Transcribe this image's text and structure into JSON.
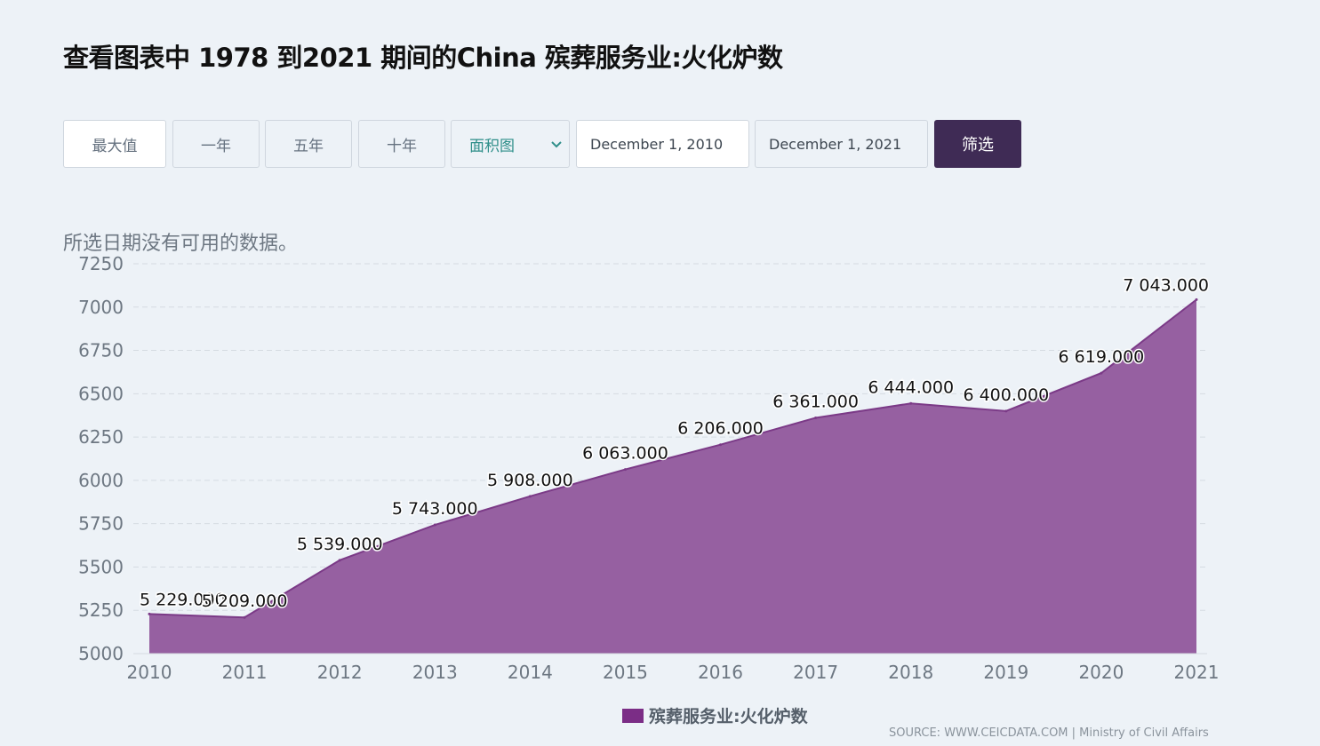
{
  "title": "查看图表中 1978 到2021 期间的China 殡葬服务业:火化炉数",
  "toolbar": {
    "buttons": [
      "最大值",
      "一年",
      "五年",
      "十年"
    ],
    "chart_type_select": "面积图",
    "start_date": "December 1, 2010",
    "end_date": "December 1, 2021",
    "filter_label": "筛选"
  },
  "no_data_message": "所选日期没有可用的数据。",
  "legend_label": "殡葬服务业:火化炉数",
  "source_text": "SOURCE: WWW.CEICDATA.COM | Ministry of Civil Affairs",
  "colors": {
    "area_fill": "#9660a1",
    "area_line": "#7b3a87",
    "legend_swatch": "#7b2d86",
    "filter_button": "#3f2b55"
  },
  "chart_data": {
    "type": "area",
    "categories": [
      "2010",
      "2011",
      "2012",
      "2013",
      "2014",
      "2015",
      "2016",
      "2017",
      "2018",
      "2019",
      "2020",
      "2021"
    ],
    "series": [
      {
        "name": "殡葬服务业:火化炉数",
        "values": [
          5229,
          5209,
          5539,
          5743,
          5908,
          6063,
          6206,
          6361,
          6444,
          6400,
          6619,
          7043
        ]
      }
    ],
    "data_labels": [
      "5 229.000",
      "5 209.000",
      "5 539.000",
      "5 743.000",
      "5 908.000",
      "6 063.000",
      "6 206.000",
      "6 361.000",
      "6 444.000",
      "6 400.000",
      "6 619.000",
      "7 043.000"
    ],
    "yticks": [
      "5000",
      "5250",
      "5500",
      "5750",
      "6000",
      "6250",
      "6500",
      "6750",
      "7000",
      "7250"
    ],
    "ylim": [
      5000,
      7250
    ],
    "grid": true,
    "legend_position": "bottom"
  }
}
